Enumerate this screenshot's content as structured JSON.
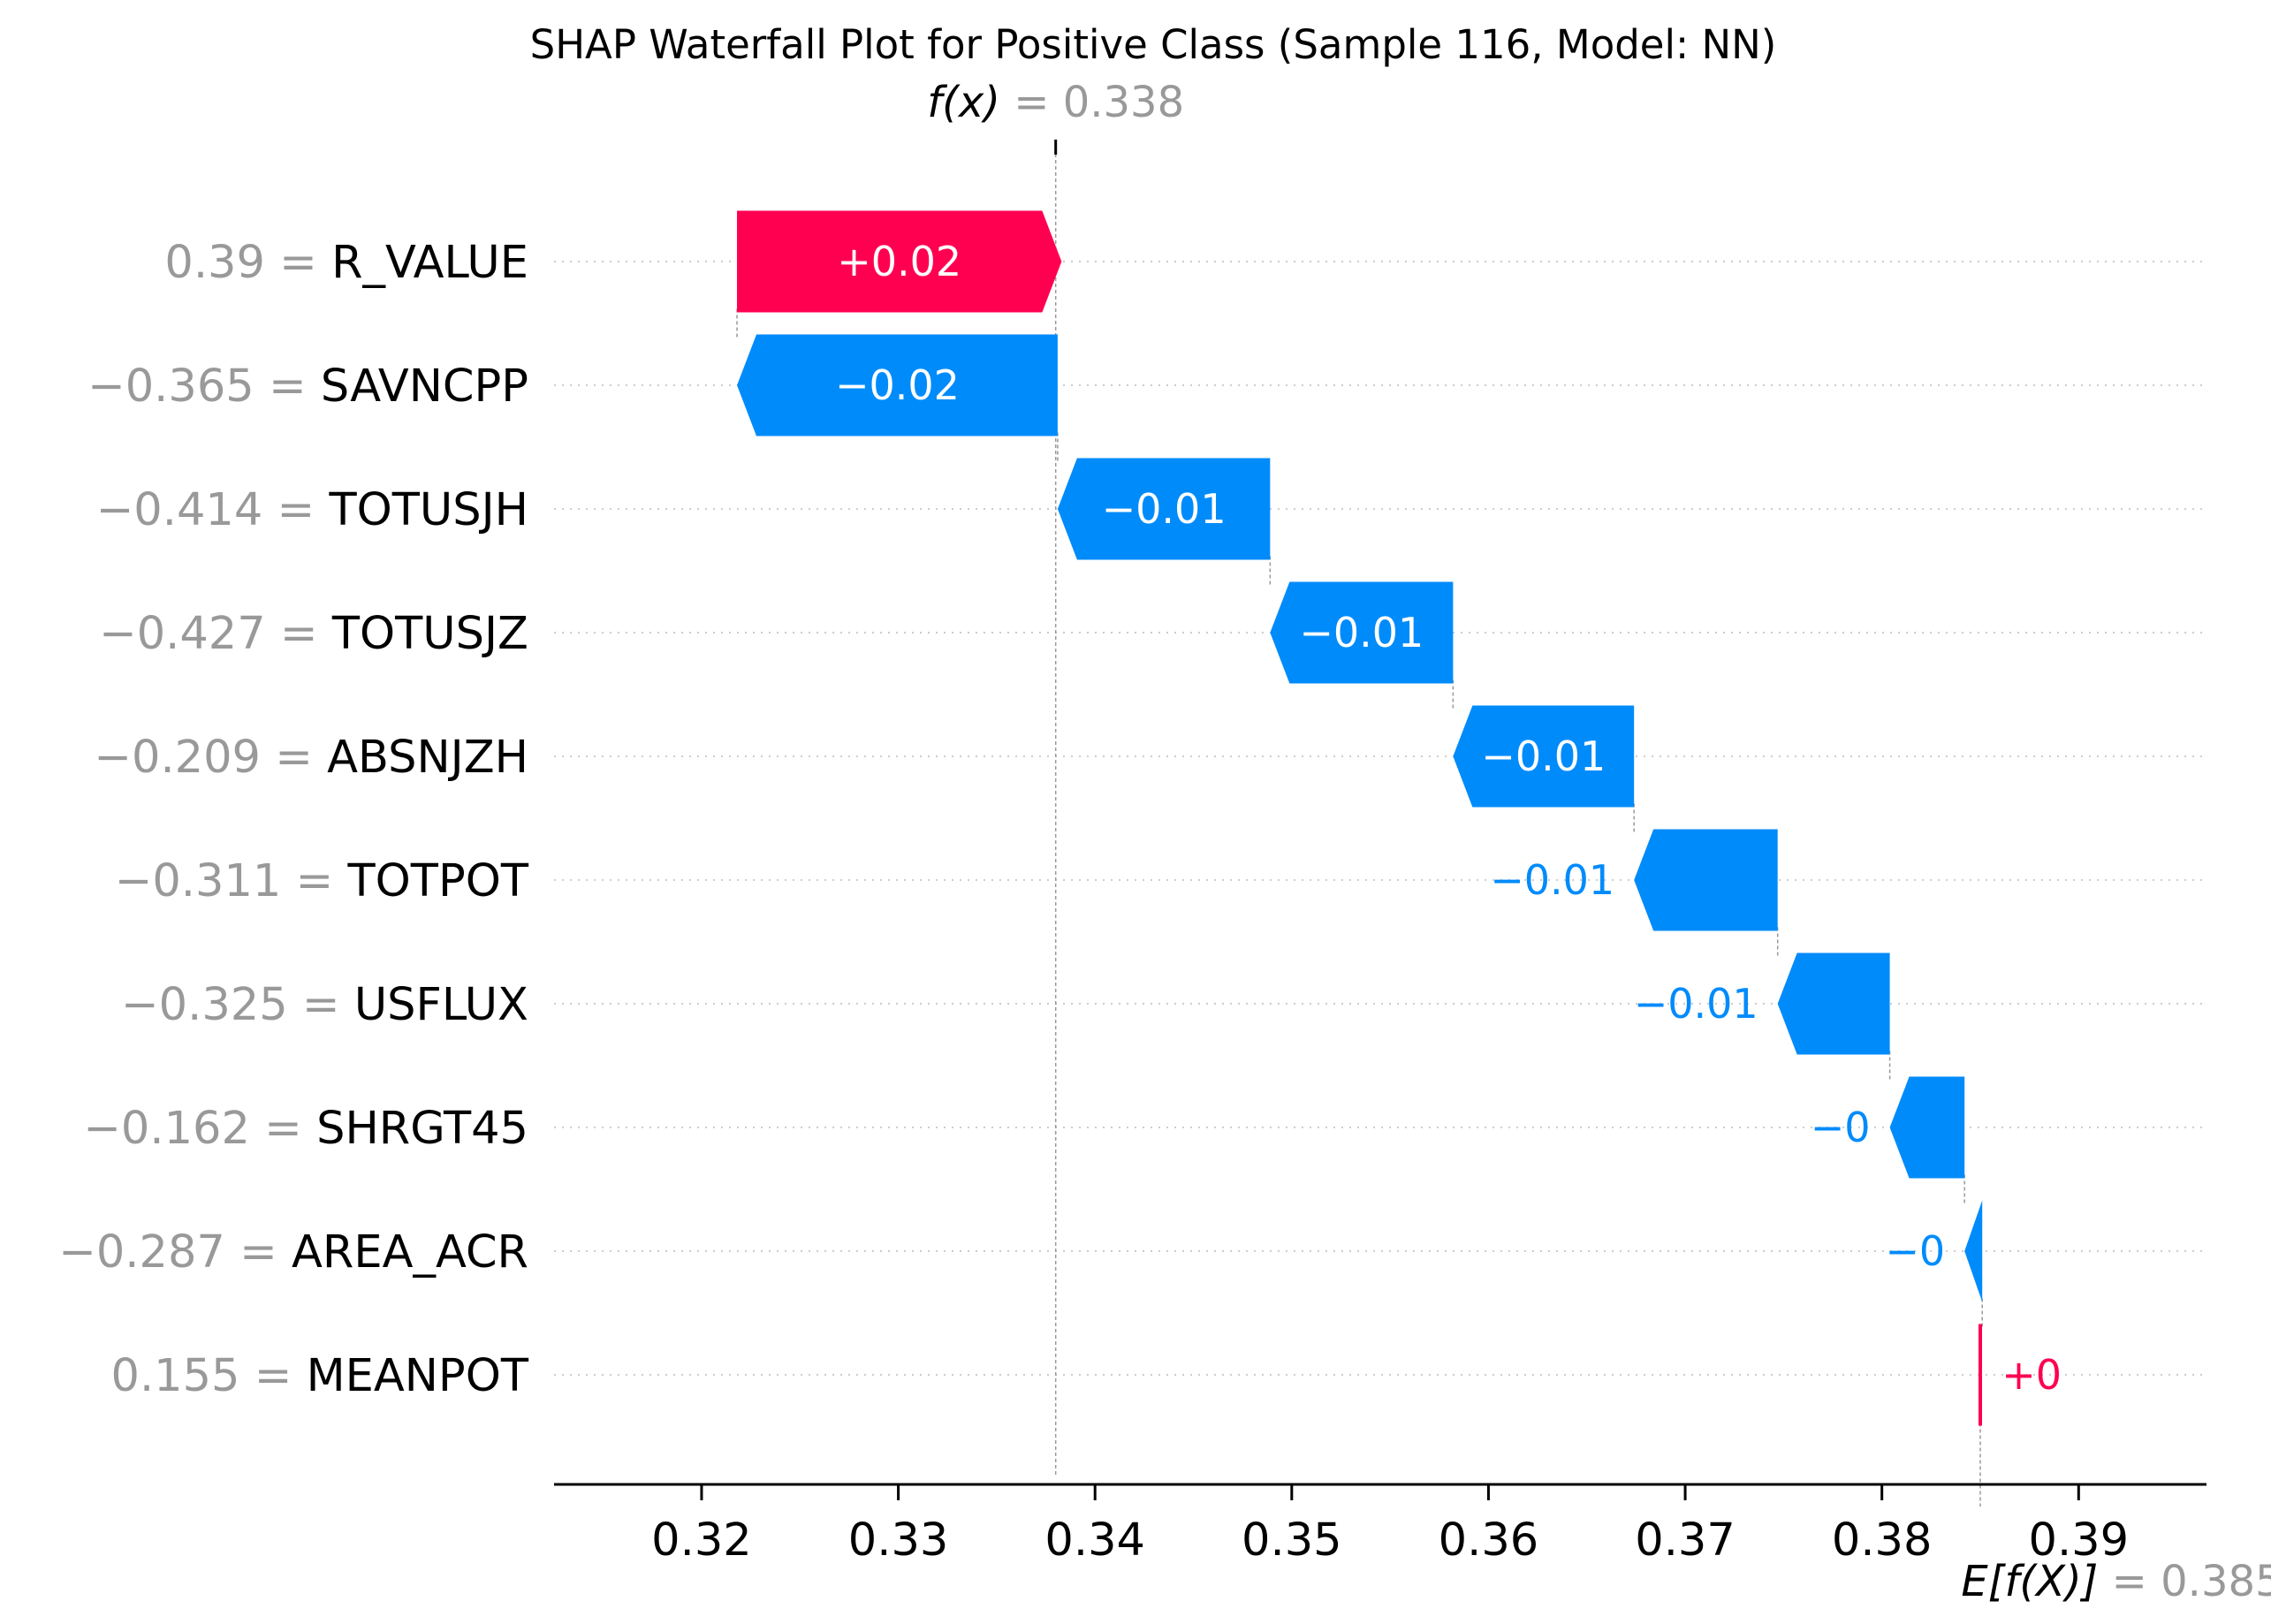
{
  "chart_data": {
    "type": "waterfall",
    "title": "SHAP Waterfall Plot for Positive Class (Sample 116, Model: NN)",
    "fx_label": "f(x)",
    "fx_value": 0.338,
    "fx_value_text": "0.338",
    "efx_label": "E[f(X)]",
    "efx_value": 0.385,
    "efx_value_text": "0.385",
    "xlim": [
      0.3125,
      0.3965
    ],
    "xticks": [
      0.32,
      0.33,
      0.34,
      0.35,
      0.36,
      0.37,
      0.38,
      0.39
    ],
    "xtick_labels": [
      "0.32",
      "0.33",
      "0.34",
      "0.35",
      "0.36",
      "0.37",
      "0.38",
      "0.39"
    ],
    "positive_color": "#ff0051",
    "negative_color": "#008bfb",
    "features": [
      {
        "value_text": "0.39",
        "name": "R_VALUE",
        "shap": 0.0165,
        "label": "+0.02"
      },
      {
        "value_text": "−0.365",
        "name": "SAVNCPP",
        "shap": -0.0163,
        "label": "−0.02"
      },
      {
        "value_text": "−0.414",
        "name": "TOTUSJH",
        "shap": -0.0108,
        "label": "−0.01"
      },
      {
        "value_text": "−0.427",
        "name": "TOTUSJZ",
        "shap": -0.0093,
        "label": "−0.01"
      },
      {
        "value_text": "−0.209",
        "name": "ABSNJZH",
        "shap": -0.0092,
        "label": "−0.01"
      },
      {
        "value_text": "−0.311",
        "name": "TOTPOT",
        "shap": -0.0073,
        "label": "−0.01"
      },
      {
        "value_text": "−0.325",
        "name": "USFLUX",
        "shap": -0.0057,
        "label": "−0.01"
      },
      {
        "value_text": "−0.162",
        "name": "SHRGT45",
        "shap": -0.0038,
        "label": "−0"
      },
      {
        "value_text": "−0.287",
        "name": "AREA_ACR",
        "shap": -0.0009,
        "label": "−0"
      },
      {
        "value_text": "0.155",
        "name": "MEANPOT",
        "shap": 0.0001,
        "label": "+0"
      }
    ]
  }
}
